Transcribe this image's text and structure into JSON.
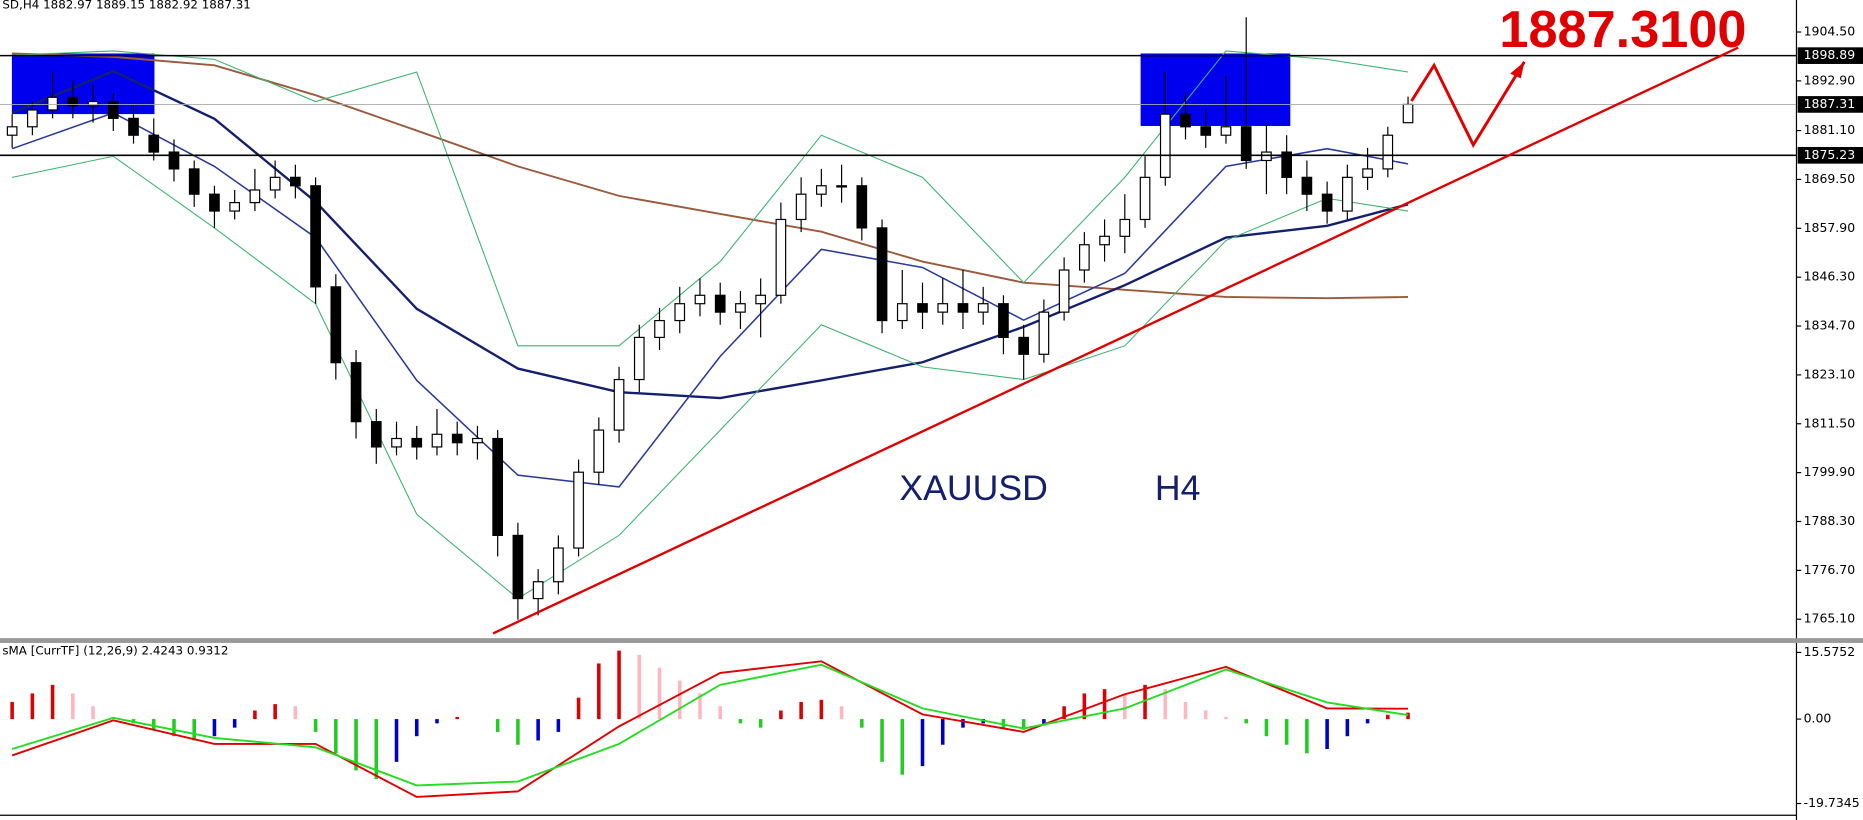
{
  "chart_data": [
    {
      "type": "candlestick",
      "title": "SD,H4  1882.97 1889.15 1882.92 1887.31",
      "annotations": [
        "1887.3100",
        "XAUUSD",
        "H4"
      ],
      "xlim": [
        -0.6,
        88.2
      ],
      "ylim": [
        1760.6,
        1912.1
      ],
      "yticks": [
        {
          "value": 1904.5,
          "label": "1904.50"
        },
        {
          "value": 1892.9,
          "label": "1892.90"
        },
        {
          "value": 1881.1,
          "label": "1881.10"
        },
        {
          "value": 1869.5,
          "label": "1869.50"
        },
        {
          "value": 1857.9,
          "label": "1857.90"
        },
        {
          "value": 1846.3,
          "label": "1846.30"
        },
        {
          "value": 1834.7,
          "label": "1834.70"
        },
        {
          "value": 1823.1,
          "label": "1823.10"
        },
        {
          "value": 1811.5,
          "label": "1811.50"
        },
        {
          "value": 1799.9,
          "label": "1799.90"
        },
        {
          "value": 1788.3,
          "label": "1788.30"
        },
        {
          "value": 1776.7,
          "label": "1776.70"
        },
        {
          "value": 1765.1,
          "label": "1765.10"
        }
      ],
      "levels": [
        1898.89,
        1875.23
      ],
      "price_line": 1887.31,
      "up_color": "#ffffff",
      "down_color": "#000000",
      "open": [
        1880,
        1882,
        1886,
        1889,
        1887,
        1888,
        1884,
        1880,
        1876,
        1872,
        1866,
        1862,
        1864,
        1867,
        1870,
        1868,
        1844,
        1826,
        1812,
        1806,
        1808,
        1806,
        1809,
        1807,
        1808,
        1785,
        1770,
        1774,
        1782,
        1800,
        1810,
        1822,
        1832,
        1836,
        1840,
        1842,
        1838,
        1840,
        1842,
        1860,
        1866,
        1868,
        1868,
        1858,
        1836,
        1840,
        1838,
        1840,
        1838,
        1840,
        1832,
        1828,
        1838,
        1848,
        1854,
        1856,
        1860,
        1870,
        1885,
        1882,
        1880,
        1882,
        1874,
        1876,
        1870,
        1866,
        1862,
        1870,
        1872,
        1882.97
      ],
      "high": [
        1885,
        1888,
        1895,
        1893,
        1892,
        1890,
        1887,
        1884,
        1879,
        1874,
        1868,
        1867,
        1872,
        1874,
        1873,
        1870,
        1847,
        1829,
        1815,
        1812,
        1811,
        1815,
        1812,
        1811,
        1810,
        1788,
        1777,
        1785,
        1803,
        1813,
        1825,
        1835,
        1839,
        1844,
        1846,
        1845,
        1843,
        1846,
        1864,
        1870,
        1872,
        1873,
        1870,
        1860,
        1848,
        1845,
        1846,
        1848,
        1844,
        1842,
        1835,
        1841,
        1851,
        1857,
        1860,
        1866,
        1875,
        1895,
        1890,
        1886,
        1894,
        1908,
        1883,
        1880,
        1874,
        1869,
        1873,
        1877,
        1882,
        1889.15
      ],
      "low": [
        1877,
        1880,
        1884,
        1884,
        1883,
        1881,
        1878,
        1874,
        1869,
        1863,
        1858,
        1860,
        1862,
        1865,
        1865,
        1840,
        1822,
        1808,
        1802,
        1804,
        1803,
        1804,
        1804,
        1803,
        1780,
        1765,
        1766,
        1771,
        1780,
        1797,
        1807,
        1819,
        1829,
        1833,
        1837,
        1835,
        1834,
        1832,
        1840,
        1857,
        1863,
        1864,
        1855,
        1833,
        1834,
        1834,
        1835,
        1834,
        1835,
        1828,
        1822,
        1826,
        1836,
        1845,
        1850,
        1852,
        1858,
        1868,
        1879,
        1877,
        1878,
        1872,
        1866,
        1866,
        1862,
        1859,
        1860,
        1867,
        1870,
        1882.92
      ],
      "close": [
        1882,
        1886,
        1889,
        1887,
        1888,
        1884,
        1880,
        1876,
        1872,
        1866,
        1862,
        1864,
        1867,
        1870,
        1868,
        1844,
        1826,
        1812,
        1806,
        1808,
        1806,
        1809,
        1807,
        1808,
        1785,
        1770,
        1774,
        1782,
        1800,
        1810,
        1822,
        1832,
        1836,
        1840,
        1842,
        1838,
        1840,
        1842,
        1860,
        1866,
        1868,
        1868,
        1858,
        1836,
        1840,
        1838,
        1840,
        1838,
        1840,
        1832,
        1828,
        1838,
        1848,
        1854,
        1856,
        1860,
        1870,
        1885,
        1882,
        1880,
        1882,
        1874,
        1876,
        1870,
        1866,
        1862,
        1870,
        1872,
        1880,
        1887.31
      ],
      "series": [
        {
          "color": "#9c5a3c",
          "width": 1.6,
          "x": [
            0,
            5,
            10,
            15,
            20,
            25,
            30,
            35,
            40,
            45,
            50,
            55,
            60,
            65,
            69
          ],
          "values": [
            1899.4,
            1898.6,
            1896.6,
            1889.5,
            1881.1,
            1872.6,
            1865.6,
            1861.3,
            1857.1,
            1850.0,
            1845.0,
            1843.3,
            1841.6,
            1841.3,
            1841.6
          ]
        },
        {
          "color": "#14206e",
          "width": 2,
          "x": [
            0,
            5,
            10,
            15,
            20,
            25,
            30,
            35,
            40,
            45,
            50,
            55,
            60,
            65,
            69
          ],
          "values": [
            1885.3,
            1895.2,
            1883.9,
            1864.2,
            1838.8,
            1824.6,
            1819.0,
            1817.6,
            1821.8,
            1826.1,
            1834.5,
            1844.4,
            1855.7,
            1858.5,
            1863.6
          ]
        },
        {
          "color": "#2a3a9a",
          "width": 1.3,
          "x": [
            0,
            5,
            10,
            15,
            20,
            25,
            30,
            35,
            40,
            45,
            50,
            55,
            60,
            65,
            69
          ],
          "values": [
            1876.8,
            1885.3,
            1872.6,
            1855.7,
            1821.8,
            1799.3,
            1796.5,
            1827.5,
            1852.9,
            1848.6,
            1836.1,
            1847.2,
            1872.6,
            1876.8,
            1873.2
          ]
        },
        {
          "color": "#3cb371",
          "width": 0.9,
          "x": [
            0,
            5,
            10,
            15,
            20,
            25,
            30,
            35,
            40,
            45,
            50,
            55,
            60,
            65,
            69
          ],
          "values": [
            1899,
            1900,
            1898,
            1888,
            1895,
            1830,
            1830,
            1850,
            1880,
            1870,
            1845,
            1870,
            1900,
            1898,
            1895
          ]
        },
        {
          "color": "#3cb371",
          "width": 0.9,
          "x": [
            0,
            5,
            10,
            15,
            20,
            25,
            30,
            35,
            40,
            45,
            50,
            55,
            60,
            65,
            69
          ],
          "values": [
            1870,
            1875,
            1858,
            1840,
            1790,
            1770,
            1785,
            1810,
            1835,
            1825,
            1822,
            1830,
            1855,
            1865,
            1862
          ]
        }
      ]
    },
    {
      "type": "macd",
      "title": "sMA [CurrTF] (12,26,9) 2.4243 0.9312",
      "xlim": [
        -0.6,
        88.2
      ],
      "ylim": [
        -22.2,
        17.8
      ],
      "yticks": [
        15.5752,
        {
          "value": 0,
          "label": "0.00"
        },
        -19.7345
      ],
      "histogram_colors": [
        "#dd0000",
        "#ffb6c1",
        "#22cc22",
        "#0000cc"
      ],
      "histogram": [
        4,
        6,
        8,
        6,
        3,
        0.5,
        -1,
        -2.5,
        -4,
        -5,
        -4,
        -2,
        2,
        3.5,
        3,
        -3,
        -8,
        -12,
        -14,
        -10,
        -4,
        -1,
        0.5,
        0,
        -3,
        -6,
        -5,
        -3,
        5,
        13,
        16,
        15,
        12,
        9,
        6,
        3,
        -1,
        -2,
        2,
        4,
        4.5,
        3,
        -2,
        -10,
        -13,
        -11,
        -6,
        -2,
        -1,
        -2,
        -2.5,
        -1.5,
        3,
        6,
        7,
        6,
        8,
        7,
        4,
        2,
        0.5,
        -1,
        -4,
        -6,
        -8,
        -7,
        -4,
        -1,
        1,
        1.5
      ],
      "series": [
        {
          "color": "#e00000",
          "width": 1.6,
          "x": [
            0,
            5,
            10,
            15,
            20,
            25,
            30,
            35,
            40,
            45,
            50,
            55,
            60,
            65,
            69
          ],
          "values": [
            -8.5,
            -0.3,
            -5.8,
            -5.8,
            -18.2,
            -16.9,
            -1.7,
            10.8,
            13.5,
            1.1,
            -3.0,
            5.8,
            12.2,
            2.5,
            2.4243
          ]
        },
        {
          "color": "#22dd22",
          "width": 1.6,
          "x": [
            0,
            5,
            10,
            15,
            20,
            25,
            30,
            35,
            40,
            45,
            50,
            55,
            60,
            65,
            69
          ],
          "values": [
            -7,
            0.3,
            -4.4,
            -6.6,
            -15.5,
            -14.6,
            -5.8,
            8.0,
            12.7,
            2.5,
            -2.2,
            2.5,
            11.6,
            3.9,
            0.9312
          ]
        }
      ]
    }
  ]
}
